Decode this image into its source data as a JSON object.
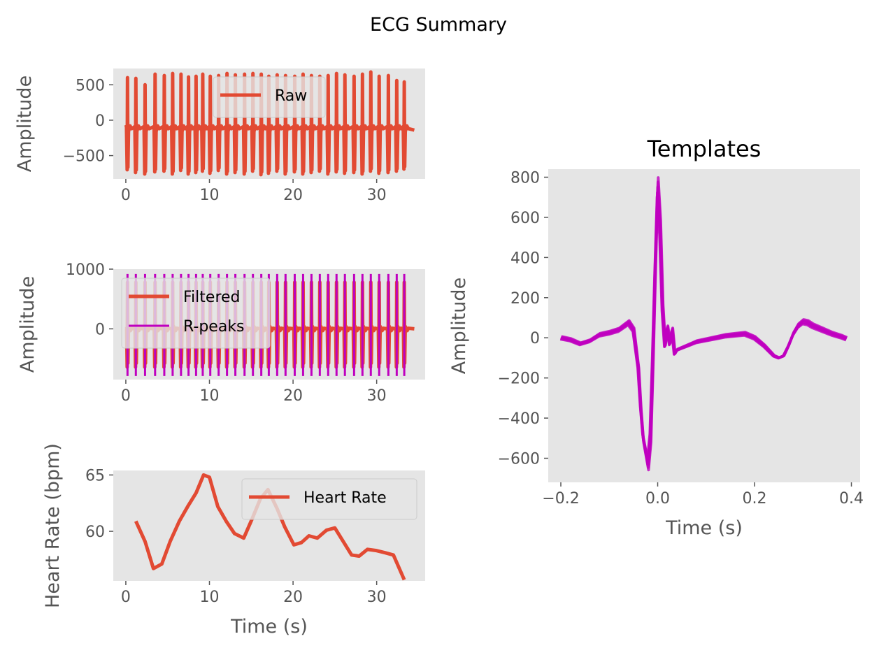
{
  "figure": {
    "suptitle": "ECG Summary",
    "background": "#ffffff",
    "axes_background": "#e5e5e5",
    "tick_color": "#555555"
  },
  "chart_data": [
    {
      "id": "raw",
      "type": "line",
      "title": "",
      "xlabel": "",
      "ylabel": "Amplitude",
      "xlim": [
        -1.5,
        35.8
      ],
      "ylim": [
        -830,
        730
      ],
      "xticks": [
        0,
        10,
        20,
        30
      ],
      "xtick_labels": [
        "0",
        "10",
        "20",
        "30"
      ],
      "yticks": [
        500,
        0,
        -500
      ],
      "ytick_labels": [
        "500",
        "0",
        "−500"
      ],
      "grid": false,
      "legend": {
        "placement": "upper center",
        "entries": [
          {
            "label": "Raw",
            "color": "#e24a33"
          }
        ]
      },
      "series": [
        {
          "name": "Raw",
          "color": "#e24a33",
          "beat_times": [
            0.2,
            1.2,
            2.3,
            3.5,
            4.6,
            5.6,
            6.6,
            7.5,
            8.4,
            9.2,
            10.1,
            11.1,
            12.1,
            13.1,
            14.2,
            15.2,
            16.2,
            17.1,
            18.1,
            19.1,
            20.2,
            21.2,
            22.2,
            23.2,
            24.2,
            25.2,
            26.2,
            27.3,
            28.3,
            29.3,
            30.3,
            31.4,
            32.4,
            33.3
          ],
          "beat_peaks": [
            600,
            590,
            500,
            650,
            630,
            660,
            650,
            610,
            620,
            650,
            620,
            630,
            660,
            640,
            650,
            660,
            650,
            620,
            640,
            630,
            620,
            650,
            630,
            620,
            630,
            660,
            640,
            620,
            650,
            680,
            620,
            630,
            560,
            540
          ],
          "beat_troughs": [
            -700,
            -740,
            -760,
            -730,
            -720,
            -760,
            -710,
            -760,
            -740,
            -720,
            -750,
            -710,
            -760,
            -740,
            -760,
            -720,
            -770,
            -750,
            -720,
            -760,
            -730,
            -760,
            -740,
            -720,
            -760,
            -730,
            -750,
            -740,
            -760,
            -720,
            -750,
            -740,
            -720,
            -690
          ],
          "x_end": 34.5,
          "baseline": -100
        }
      ]
    },
    {
      "id": "filtered",
      "type": "line",
      "title": "",
      "xlabel": "",
      "ylabel": "Amplitude",
      "xlim": [
        -1.5,
        35.8
      ],
      "ylim": [
        -850,
        1000
      ],
      "xticks": [
        0,
        10,
        20,
        30
      ],
      "xtick_labels": [
        "0",
        "10",
        "20",
        "30"
      ],
      "yticks": [
        1000,
        0
      ],
      "ytick_labels": [
        "1000",
        "0"
      ],
      "grid": false,
      "legend": {
        "placement": "center left",
        "entries": [
          {
            "label": "Filtered",
            "color": "#e24a33"
          },
          {
            "label": "R-peaks",
            "color": "#bf00bf"
          }
        ]
      },
      "series": [
        {
          "name": "Filtered",
          "color": "#e24a33",
          "beat_times": [
            0.2,
            1.2,
            2.3,
            3.5,
            4.6,
            5.6,
            6.6,
            7.5,
            8.4,
            9.2,
            10.1,
            11.1,
            12.1,
            13.1,
            14.2,
            15.2,
            16.2,
            17.1,
            18.1,
            19.1,
            20.2,
            21.2,
            22.2,
            23.2,
            24.2,
            25.2,
            26.2,
            27.3,
            28.3,
            29.3,
            30.3,
            31.4,
            32.4,
            33.3
          ],
          "peak": 780,
          "trough": -640,
          "x_end": 34.5,
          "baseline": 0
        },
        {
          "name": "R-peaks",
          "color": "#bf00bf",
          "x": [
            0.2,
            1.2,
            2.3,
            3.5,
            4.6,
            5.6,
            6.6,
            7.5,
            8.4,
            9.2,
            10.1,
            11.1,
            12.1,
            13.1,
            14.2,
            15.2,
            16.2,
            17.1,
            18.1,
            19.1,
            20.2,
            21.2,
            22.2,
            23.2,
            24.2,
            25.2,
            26.2,
            27.3,
            28.3,
            29.3,
            30.3,
            31.4,
            32.4,
            33.3
          ],
          "ymin": -790,
          "ymax": 920
        }
      ]
    },
    {
      "id": "heart-rate",
      "type": "line",
      "title": "",
      "xlabel": "Time (s)",
      "ylabel": "Heart Rate (bpm)",
      "xlim": [
        -1.5,
        35.8
      ],
      "ylim": [
        55.6,
        65.4
      ],
      "xticks": [
        0,
        10,
        20,
        30
      ],
      "xtick_labels": [
        "0",
        "10",
        "20",
        "30"
      ],
      "yticks": [
        65,
        60
      ],
      "ytick_labels": [
        "65",
        "60"
      ],
      "grid": false,
      "legend": {
        "placement": "upper right",
        "entries": [
          {
            "label": "Heart Rate",
            "color": "#e24a33"
          }
        ]
      },
      "series": [
        {
          "name": "Heart Rate",
          "color": "#e24a33",
          "x": [
            1.2,
            2.3,
            3.3,
            4.3,
            5.3,
            6.4,
            7.4,
            8.4,
            9.3,
            10.0,
            11.0,
            12.0,
            13.0,
            14.1,
            15.1,
            16.1,
            17.0,
            18.1,
            19.0,
            20.1,
            21.0,
            21.9,
            22.9,
            24.0,
            25.0,
            26.0,
            27.0,
            27.9,
            28.9,
            29.9,
            31.0,
            32.0,
            33.3
          ],
          "y": [
            60.9,
            59.1,
            56.7,
            57.1,
            59.1,
            60.9,
            62.2,
            63.4,
            65.0,
            64.8,
            62.2,
            60.9,
            59.8,
            59.4,
            61.1,
            62.9,
            63.7,
            62.0,
            60.4,
            58.8,
            59.0,
            59.6,
            59.4,
            60.1,
            60.3,
            59.1,
            57.9,
            57.8,
            58.4,
            58.3,
            58.1,
            57.9,
            55.7
          ]
        }
      ]
    },
    {
      "id": "templates",
      "type": "line",
      "title": "Templates",
      "xlabel": "Time (s)",
      "ylabel": "Amplitude",
      "xlim": [
        -0.226,
        0.418
      ],
      "ylim": [
        -720,
        840
      ],
      "xticks": [
        -0.2,
        0.0,
        0.2,
        0.4
      ],
      "xtick_labels": [
        "−0.2",
        "0.0",
        "0.2",
        "0.4"
      ],
      "yticks": [
        800,
        600,
        400,
        200,
        0,
        -200,
        -400,
        -600
      ],
      "ytick_labels": [
        "800",
        "600",
        "400",
        "200",
        "0",
        "−200",
        "−400",
        "−600"
      ],
      "grid": false,
      "series": [
        {
          "name": "",
          "color": "#bf00bf",
          "x": [
            -0.2,
            -0.18,
            -0.16,
            -0.14,
            -0.12,
            -0.1,
            -0.08,
            -0.06,
            -0.05,
            -0.04,
            -0.035,
            -0.03,
            -0.02,
            -0.015,
            -0.01,
            -0.005,
            0.0,
            0.005,
            0.01,
            0.015,
            0.02,
            0.025,
            0.03,
            0.035,
            0.04,
            0.05,
            0.06,
            0.07,
            0.08,
            0.1,
            0.12,
            0.14,
            0.16,
            0.18,
            0.2,
            0.22,
            0.24,
            0.25,
            0.26,
            0.27,
            0.28,
            0.29,
            0.3,
            0.31,
            0.32,
            0.34,
            0.36,
            0.38,
            0.39
          ],
          "y": [
            0,
            -10,
            -30,
            -15,
            15,
            25,
            40,
            75,
            40,
            -150,
            -350,
            -500,
            -630,
            -500,
            -100,
            350,
            750,
            550,
            150,
            -40,
            50,
            -30,
            40,
            -80,
            -60,
            -50,
            -40,
            -30,
            -20,
            -10,
            0,
            10,
            15,
            20,
            0,
            -40,
            -90,
            -100,
            -90,
            -40,
            20,
            60,
            80,
            75,
            60,
            40,
            20,
            5,
            -5
          ],
          "band_offsets": [
            -22,
            -12,
            0,
            12,
            22
          ]
        }
      ]
    }
  ]
}
